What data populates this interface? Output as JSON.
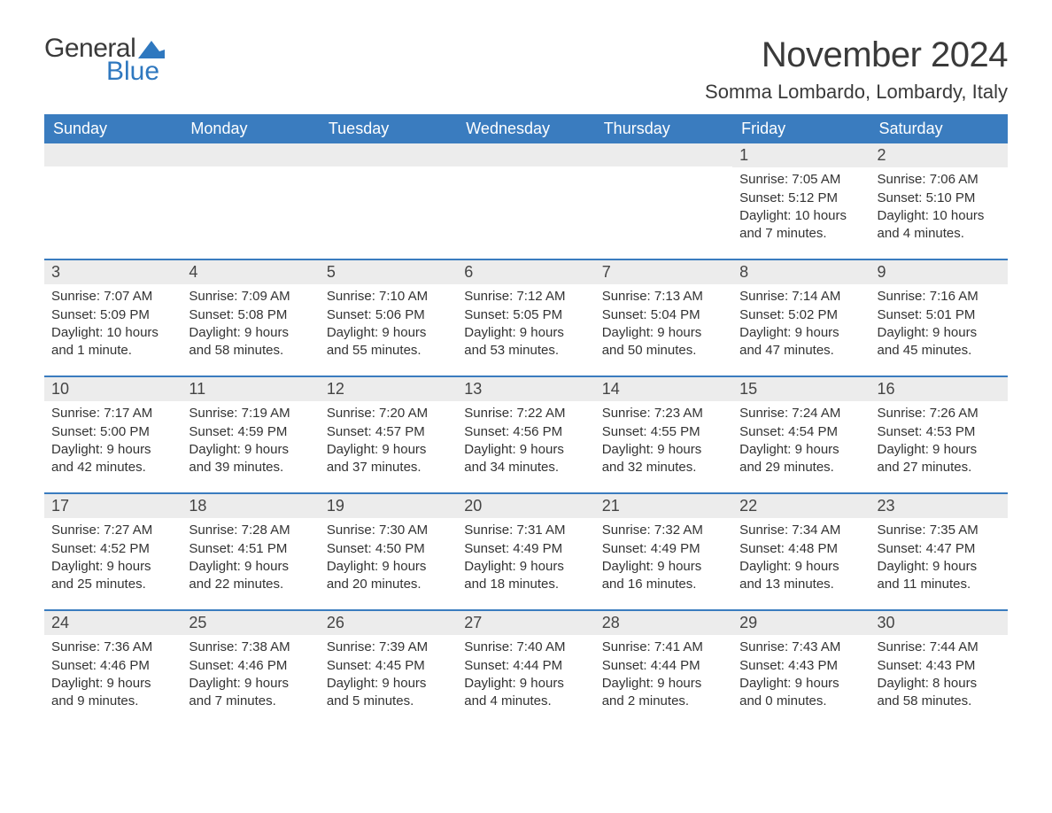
{
  "logo": {
    "word1": "General",
    "word2": "Blue",
    "shape_color": "#2f78bf"
  },
  "title": "November 2024",
  "location": "Somma Lombardo, Lombardy, Italy",
  "colors": {
    "header_bg": "#3a7cbf",
    "header_text": "#ffffff",
    "row_separator": "#3a7cbf",
    "daynum_bg": "#ececec",
    "text": "#333333",
    "background": "#ffffff"
  },
  "weekdays": [
    "Sunday",
    "Monday",
    "Tuesday",
    "Wednesday",
    "Thursday",
    "Friday",
    "Saturday"
  ],
  "weeks": [
    [
      null,
      null,
      null,
      null,
      null,
      {
        "day": "1",
        "sunrise": "Sunrise: 7:05 AM",
        "sunset": "Sunset: 5:12 PM",
        "daylight1": "Daylight: 10 hours",
        "daylight2": "and 7 minutes."
      },
      {
        "day": "2",
        "sunrise": "Sunrise: 7:06 AM",
        "sunset": "Sunset: 5:10 PM",
        "daylight1": "Daylight: 10 hours",
        "daylight2": "and 4 minutes."
      }
    ],
    [
      {
        "day": "3",
        "sunrise": "Sunrise: 7:07 AM",
        "sunset": "Sunset: 5:09 PM",
        "daylight1": "Daylight: 10 hours",
        "daylight2": "and 1 minute."
      },
      {
        "day": "4",
        "sunrise": "Sunrise: 7:09 AM",
        "sunset": "Sunset: 5:08 PM",
        "daylight1": "Daylight: 9 hours",
        "daylight2": "and 58 minutes."
      },
      {
        "day": "5",
        "sunrise": "Sunrise: 7:10 AM",
        "sunset": "Sunset: 5:06 PM",
        "daylight1": "Daylight: 9 hours",
        "daylight2": "and 55 minutes."
      },
      {
        "day": "6",
        "sunrise": "Sunrise: 7:12 AM",
        "sunset": "Sunset: 5:05 PM",
        "daylight1": "Daylight: 9 hours",
        "daylight2": "and 53 minutes."
      },
      {
        "day": "7",
        "sunrise": "Sunrise: 7:13 AM",
        "sunset": "Sunset: 5:04 PM",
        "daylight1": "Daylight: 9 hours",
        "daylight2": "and 50 minutes."
      },
      {
        "day": "8",
        "sunrise": "Sunrise: 7:14 AM",
        "sunset": "Sunset: 5:02 PM",
        "daylight1": "Daylight: 9 hours",
        "daylight2": "and 47 minutes."
      },
      {
        "day": "9",
        "sunrise": "Sunrise: 7:16 AM",
        "sunset": "Sunset: 5:01 PM",
        "daylight1": "Daylight: 9 hours",
        "daylight2": "and 45 minutes."
      }
    ],
    [
      {
        "day": "10",
        "sunrise": "Sunrise: 7:17 AM",
        "sunset": "Sunset: 5:00 PM",
        "daylight1": "Daylight: 9 hours",
        "daylight2": "and 42 minutes."
      },
      {
        "day": "11",
        "sunrise": "Sunrise: 7:19 AM",
        "sunset": "Sunset: 4:59 PM",
        "daylight1": "Daylight: 9 hours",
        "daylight2": "and 39 minutes."
      },
      {
        "day": "12",
        "sunrise": "Sunrise: 7:20 AM",
        "sunset": "Sunset: 4:57 PM",
        "daylight1": "Daylight: 9 hours",
        "daylight2": "and 37 minutes."
      },
      {
        "day": "13",
        "sunrise": "Sunrise: 7:22 AM",
        "sunset": "Sunset: 4:56 PM",
        "daylight1": "Daylight: 9 hours",
        "daylight2": "and 34 minutes."
      },
      {
        "day": "14",
        "sunrise": "Sunrise: 7:23 AM",
        "sunset": "Sunset: 4:55 PM",
        "daylight1": "Daylight: 9 hours",
        "daylight2": "and 32 minutes."
      },
      {
        "day": "15",
        "sunrise": "Sunrise: 7:24 AM",
        "sunset": "Sunset: 4:54 PM",
        "daylight1": "Daylight: 9 hours",
        "daylight2": "and 29 minutes."
      },
      {
        "day": "16",
        "sunrise": "Sunrise: 7:26 AM",
        "sunset": "Sunset: 4:53 PM",
        "daylight1": "Daylight: 9 hours",
        "daylight2": "and 27 minutes."
      }
    ],
    [
      {
        "day": "17",
        "sunrise": "Sunrise: 7:27 AM",
        "sunset": "Sunset: 4:52 PM",
        "daylight1": "Daylight: 9 hours",
        "daylight2": "and 25 minutes."
      },
      {
        "day": "18",
        "sunrise": "Sunrise: 7:28 AM",
        "sunset": "Sunset: 4:51 PM",
        "daylight1": "Daylight: 9 hours",
        "daylight2": "and 22 minutes."
      },
      {
        "day": "19",
        "sunrise": "Sunrise: 7:30 AM",
        "sunset": "Sunset: 4:50 PM",
        "daylight1": "Daylight: 9 hours",
        "daylight2": "and 20 minutes."
      },
      {
        "day": "20",
        "sunrise": "Sunrise: 7:31 AM",
        "sunset": "Sunset: 4:49 PM",
        "daylight1": "Daylight: 9 hours",
        "daylight2": "and 18 minutes."
      },
      {
        "day": "21",
        "sunrise": "Sunrise: 7:32 AM",
        "sunset": "Sunset: 4:49 PM",
        "daylight1": "Daylight: 9 hours",
        "daylight2": "and 16 minutes."
      },
      {
        "day": "22",
        "sunrise": "Sunrise: 7:34 AM",
        "sunset": "Sunset: 4:48 PM",
        "daylight1": "Daylight: 9 hours",
        "daylight2": "and 13 minutes."
      },
      {
        "day": "23",
        "sunrise": "Sunrise: 7:35 AM",
        "sunset": "Sunset: 4:47 PM",
        "daylight1": "Daylight: 9 hours",
        "daylight2": "and 11 minutes."
      }
    ],
    [
      {
        "day": "24",
        "sunrise": "Sunrise: 7:36 AM",
        "sunset": "Sunset: 4:46 PM",
        "daylight1": "Daylight: 9 hours",
        "daylight2": "and 9 minutes."
      },
      {
        "day": "25",
        "sunrise": "Sunrise: 7:38 AM",
        "sunset": "Sunset: 4:46 PM",
        "daylight1": "Daylight: 9 hours",
        "daylight2": "and 7 minutes."
      },
      {
        "day": "26",
        "sunrise": "Sunrise: 7:39 AM",
        "sunset": "Sunset: 4:45 PM",
        "daylight1": "Daylight: 9 hours",
        "daylight2": "and 5 minutes."
      },
      {
        "day": "27",
        "sunrise": "Sunrise: 7:40 AM",
        "sunset": "Sunset: 4:44 PM",
        "daylight1": "Daylight: 9 hours",
        "daylight2": "and 4 minutes."
      },
      {
        "day": "28",
        "sunrise": "Sunrise: 7:41 AM",
        "sunset": "Sunset: 4:44 PM",
        "daylight1": "Daylight: 9 hours",
        "daylight2": "and 2 minutes."
      },
      {
        "day": "29",
        "sunrise": "Sunrise: 7:43 AM",
        "sunset": "Sunset: 4:43 PM",
        "daylight1": "Daylight: 9 hours",
        "daylight2": "and 0 minutes."
      },
      {
        "day": "30",
        "sunrise": "Sunrise: 7:44 AM",
        "sunset": "Sunset: 4:43 PM",
        "daylight1": "Daylight: 8 hours",
        "daylight2": "and 58 minutes."
      }
    ]
  ]
}
